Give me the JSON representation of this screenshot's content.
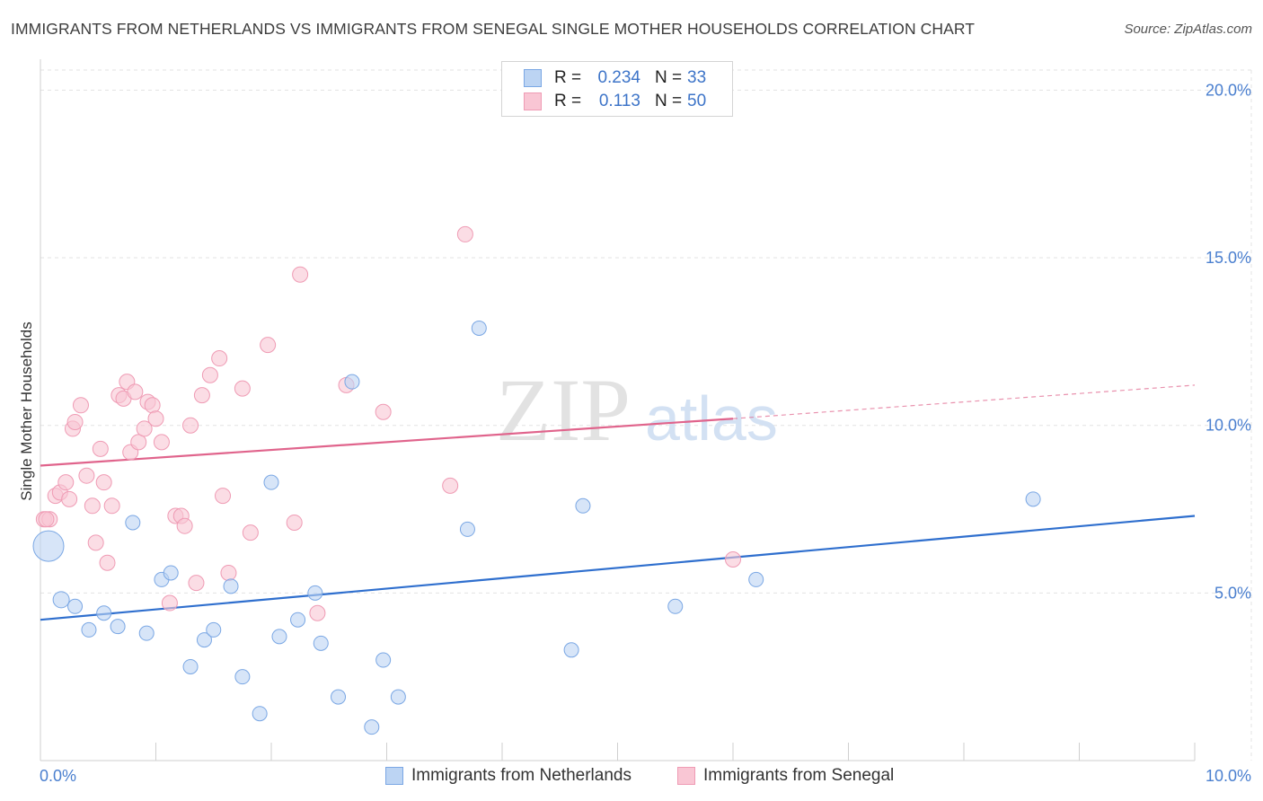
{
  "title": "IMMIGRANTS FROM NETHERLANDS VS IMMIGRANTS FROM SENEGAL SINGLE MOTHER HOUSEHOLDS CORRELATION CHART",
  "source": "Source: ZipAtlas.com",
  "watermark": {
    "zip": "ZIP",
    "atlas": "atlas"
  },
  "stats": [
    {
      "r_label": "R =",
      "r_value": "0.234",
      "n_label": "N =",
      "n_value": "33"
    },
    {
      "r_label": "R =",
      "r_value": "0.113",
      "n_label": "N =",
      "n_value": "50"
    }
  ],
  "colors": {
    "netherlands_fill": "#bcd4f3",
    "netherlands_stroke": "#7aa7e4",
    "netherlands_line": "#2f6fce",
    "senegal_fill": "#f9c6d4",
    "senegal_stroke": "#ef9bb4",
    "senegal_line": "#e0648c",
    "grid": "#e3e3e3",
    "tick_label": "#4a7fcf"
  },
  "chart_data": {
    "type": "scatter",
    "xlabel": "",
    "ylabel": "Single Mother Households",
    "xlim": [
      0,
      10
    ],
    "ylim": [
      0,
      20.6
    ],
    "y_ticks": [
      5,
      10,
      15,
      20
    ],
    "y_tick_labels": [
      "5.0%",
      "10.0%",
      "15.0%",
      "20.0%"
    ],
    "x_tick_labels": [
      "0.0%",
      "10.0%"
    ],
    "grid": true,
    "legend_position": "bottom-center",
    "series": [
      {
        "name": "Immigrants from Netherlands",
        "points": [
          [
            0.07,
            6.4
          ],
          [
            0.18,
            4.8
          ],
          [
            0.3,
            4.6
          ],
          [
            0.42,
            3.9
          ],
          [
            0.55,
            4.4
          ],
          [
            0.67,
            4.0
          ],
          [
            0.8,
            7.1
          ],
          [
            0.92,
            3.8
          ],
          [
            1.05,
            5.4
          ],
          [
            1.13,
            5.6
          ],
          [
            1.3,
            2.8
          ],
          [
            1.42,
            3.6
          ],
          [
            1.5,
            3.9
          ],
          [
            1.65,
            5.2
          ],
          [
            1.75,
            2.5
          ],
          [
            1.9,
            1.4
          ],
          [
            2.0,
            8.3
          ],
          [
            2.07,
            3.7
          ],
          [
            2.23,
            4.2
          ],
          [
            2.38,
            5.0
          ],
          [
            2.43,
            3.5
          ],
          [
            2.58,
            1.9
          ],
          [
            2.7,
            11.3
          ],
          [
            2.87,
            1.0
          ],
          [
            2.97,
            3.0
          ],
          [
            3.1,
            1.9
          ],
          [
            3.7,
            6.9
          ],
          [
            3.8,
            12.9
          ],
          [
            4.6,
            3.3
          ],
          [
            4.7,
            7.6
          ],
          [
            5.5,
            4.6
          ],
          [
            6.2,
            5.4
          ],
          [
            8.6,
            7.8
          ]
        ],
        "sizes": [
          17,
          9,
          8,
          8,
          8,
          8,
          8,
          8,
          8,
          8,
          8,
          8,
          8,
          8,
          8,
          8,
          8,
          8,
          8,
          8,
          8,
          8,
          8,
          8,
          8,
          8,
          8,
          8,
          8,
          8,
          8,
          8,
          8
        ],
        "trend": {
          "x": [
            0,
            10
          ],
          "y": [
            4.2,
            7.3
          ]
        }
      },
      {
        "name": "Immigrants from Senegal",
        "points": [
          [
            0.03,
            7.2
          ],
          [
            0.08,
            7.2
          ],
          [
            0.13,
            7.9
          ],
          [
            0.17,
            8.0
          ],
          [
            0.22,
            8.3
          ],
          [
            0.25,
            7.8
          ],
          [
            0.28,
            9.9
          ],
          [
            0.3,
            10.1
          ],
          [
            0.35,
            10.6
          ],
          [
            0.4,
            8.5
          ],
          [
            0.45,
            7.6
          ],
          [
            0.48,
            6.5
          ],
          [
            0.52,
            9.3
          ],
          [
            0.55,
            8.3
          ],
          [
            0.58,
            5.9
          ],
          [
            0.62,
            7.6
          ],
          [
            0.68,
            10.9
          ],
          [
            0.72,
            10.8
          ],
          [
            0.75,
            11.3
          ],
          [
            0.78,
            9.2
          ],
          [
            0.82,
            11.0
          ],
          [
            0.85,
            9.5
          ],
          [
            0.9,
            9.9
          ],
          [
            0.93,
            10.7
          ],
          [
            0.97,
            10.6
          ],
          [
            1.0,
            10.2
          ],
          [
            1.05,
            9.5
          ],
          [
            1.12,
            4.7
          ],
          [
            1.17,
            7.3
          ],
          [
            1.22,
            7.3
          ],
          [
            1.25,
            7.0
          ],
          [
            1.3,
            10.0
          ],
          [
            1.35,
            5.3
          ],
          [
            1.4,
            10.9
          ],
          [
            1.47,
            11.5
          ],
          [
            1.55,
            12.0
          ],
          [
            1.58,
            7.9
          ],
          [
            1.63,
            5.6
          ],
          [
            1.75,
            11.1
          ],
          [
            1.82,
            6.8
          ],
          [
            1.97,
            12.4
          ],
          [
            2.2,
            7.1
          ],
          [
            2.25,
            14.5
          ],
          [
            2.4,
            4.4
          ],
          [
            2.65,
            11.2
          ],
          [
            2.97,
            10.4
          ],
          [
            3.55,
            8.2
          ],
          [
            3.68,
            15.7
          ],
          [
            6.0,
            6.0
          ],
          [
            0.05,
            7.2
          ]
        ],
        "trend": {
          "x": [
            0,
            6.0
          ],
          "y": [
            8.8,
            10.2
          ]
        },
        "trend_extension": {
          "x": [
            6.0,
            10
          ],
          "y": [
            10.2,
            11.2
          ]
        }
      }
    ]
  }
}
